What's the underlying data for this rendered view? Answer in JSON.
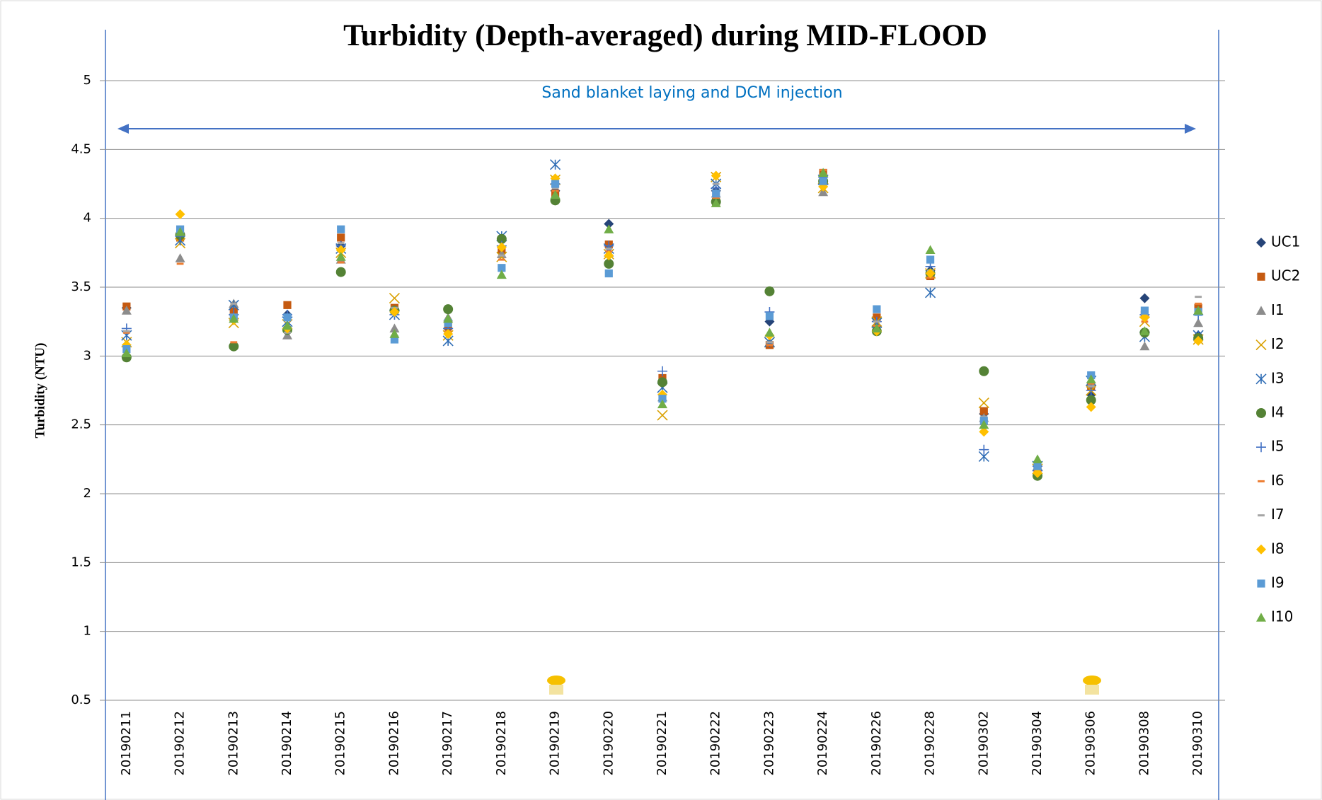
{
  "chart_data": {
    "type": "scatter",
    "title": "Turbidity (Depth-averaged) during MID-FLOOD",
    "y_label": "Turbidity (NTU)",
    "annotation": "Sand blanket laying and DCM injection",
    "categories": [
      "20190211",
      "20190212",
      "20190213",
      "20190214",
      "20190215",
      "20190216",
      "20190217",
      "20190218",
      "20190219",
      "20190220",
      "20190221",
      "20190222",
      "20190223",
      "20190224",
      "20190226",
      "20190228",
      "20190302",
      "20190304",
      "20190306",
      "20190308",
      "20190310"
    ],
    "ylim": [
      0.5,
      5
    ],
    "yticks": [
      0.5,
      1,
      1.5,
      2,
      2.5,
      3,
      3.5,
      4,
      4.5,
      5
    ],
    "grid": true,
    "legend": "right",
    "series": [
      {
        "name": "UC1",
        "color": "#264478",
        "marker": "diamond",
        "values": [
          3.35,
          3.85,
          3.3,
          3.3,
          3.8,
          3.33,
          3.2,
          3.75,
          4.2,
          3.96,
          2.8,
          4.2,
          3.25,
          4.25,
          3.22,
          3.62,
          2.58,
          2.2,
          2.72,
          3.42,
          3.15
        ]
      },
      {
        "name": "UC2",
        "color": "#c55a11",
        "marker": "square",
        "values": [
          3.36,
          3.86,
          3.33,
          3.37,
          3.86,
          3.35,
          3.22,
          3.77,
          4.18,
          3.81,
          2.84,
          4.12,
          3.08,
          4.33,
          3.28,
          3.58,
          2.6,
          2.18,
          2.78,
          3.3,
          3.35
        ]
      },
      {
        "name": "I1",
        "color": "#8c8c8c",
        "marker": "triangle",
        "values": [
          3.33,
          3.71,
          3.38,
          3.15,
          3.7,
          3.2,
          3.28,
          3.74,
          4.15,
          3.75,
          2.7,
          4.18,
          3.1,
          4.19,
          3.2,
          3.6,
          2.55,
          2.2,
          2.8,
          3.07,
          3.24
        ]
      },
      {
        "name": "I2",
        "color": "#d9a000",
        "marker": "x",
        "values": [
          3.1,
          3.82,
          3.24,
          3.23,
          3.75,
          3.42,
          3.15,
          3.72,
          4.28,
          3.74,
          2.57,
          4.3,
          3.1,
          4.22,
          3.25,
          3.6,
          2.66,
          2.18,
          2.75,
          3.25,
          3.12
        ]
      },
      {
        "name": "I3",
        "color": "#2f6db5",
        "marker": "star",
        "values": [
          3.15,
          3.84,
          3.37,
          3.25,
          3.78,
          3.3,
          3.11,
          3.87,
          4.39,
          3.78,
          2.77,
          4.25,
          3.1,
          4.28,
          3.24,
          3.46,
          2.27,
          2.2,
          2.82,
          3.14,
          3.15
        ]
      },
      {
        "name": "I4",
        "color": "#548235",
        "marker": "circle",
        "values": [
          2.99,
          3.88,
          3.07,
          3.19,
          3.61,
          3.33,
          3.34,
          3.85,
          4.13,
          3.67,
          2.81,
          4.12,
          3.47,
          4.27,
          3.18,
          3.6,
          2.89,
          2.13,
          2.68,
          3.17,
          3.13
        ]
      },
      {
        "name": "I5",
        "color": "#4472c4",
        "marker": "plus",
        "values": [
          3.2,
          3.87,
          3.3,
          3.3,
          3.8,
          3.3,
          3.2,
          3.8,
          4.25,
          3.8,
          2.89,
          4.22,
          3.32,
          4.3,
          3.25,
          3.65,
          2.32,
          2.2,
          2.75,
          3.3,
          3.3
        ]
      },
      {
        "name": "I6",
        "color": "#ed7d31",
        "marker": "dash",
        "values": [
          3.17,
          3.67,
          3.1,
          3.2,
          3.68,
          3.33,
          3.18,
          3.7,
          4.2,
          3.76,
          2.7,
          4.15,
          3.08,
          4.35,
          3.22,
          3.57,
          2.52,
          2.17,
          2.8,
          3.25,
          3.38
        ]
      },
      {
        "name": "I7",
        "color": "#a5a5a5",
        "marker": "dash",
        "values": [
          3.18,
          3.92,
          3.38,
          3.17,
          3.82,
          3.35,
          3.25,
          3.73,
          4.22,
          3.78,
          2.72,
          4.25,
          3.1,
          4.28,
          3.25,
          3.62,
          2.56,
          2.22,
          2.78,
          3.3,
          3.43
        ]
      },
      {
        "name": "I8",
        "color": "#ffc000",
        "marker": "diamond",
        "values": [
          3.08,
          4.03,
          3.26,
          3.2,
          3.77,
          3.32,
          3.16,
          3.79,
          4.29,
          3.73,
          2.72,
          4.31,
          3.15,
          4.23,
          3.18,
          3.6,
          2.45,
          2.15,
          2.63,
          3.28,
          3.11
        ]
      },
      {
        "name": "I9",
        "color": "#5b9bd5",
        "marker": "square",
        "values": [
          3.05,
          3.92,
          3.28,
          3.28,
          3.92,
          3.12,
          3.24,
          3.64,
          4.25,
          3.6,
          2.69,
          4.18,
          3.29,
          4.27,
          3.34,
          3.7,
          2.53,
          2.2,
          2.86,
          3.33,
          3.32
        ]
      },
      {
        "name": "I10",
        "color": "#70ad47",
        "marker": "triangle",
        "values": [
          3.02,
          3.9,
          3.27,
          3.22,
          3.72,
          3.16,
          3.27,
          3.59,
          4.17,
          3.92,
          2.65,
          4.11,
          3.17,
          4.33,
          3.2,
          3.77,
          2.5,
          2.25,
          2.83,
          3.18,
          3.33
        ]
      }
    ]
  }
}
